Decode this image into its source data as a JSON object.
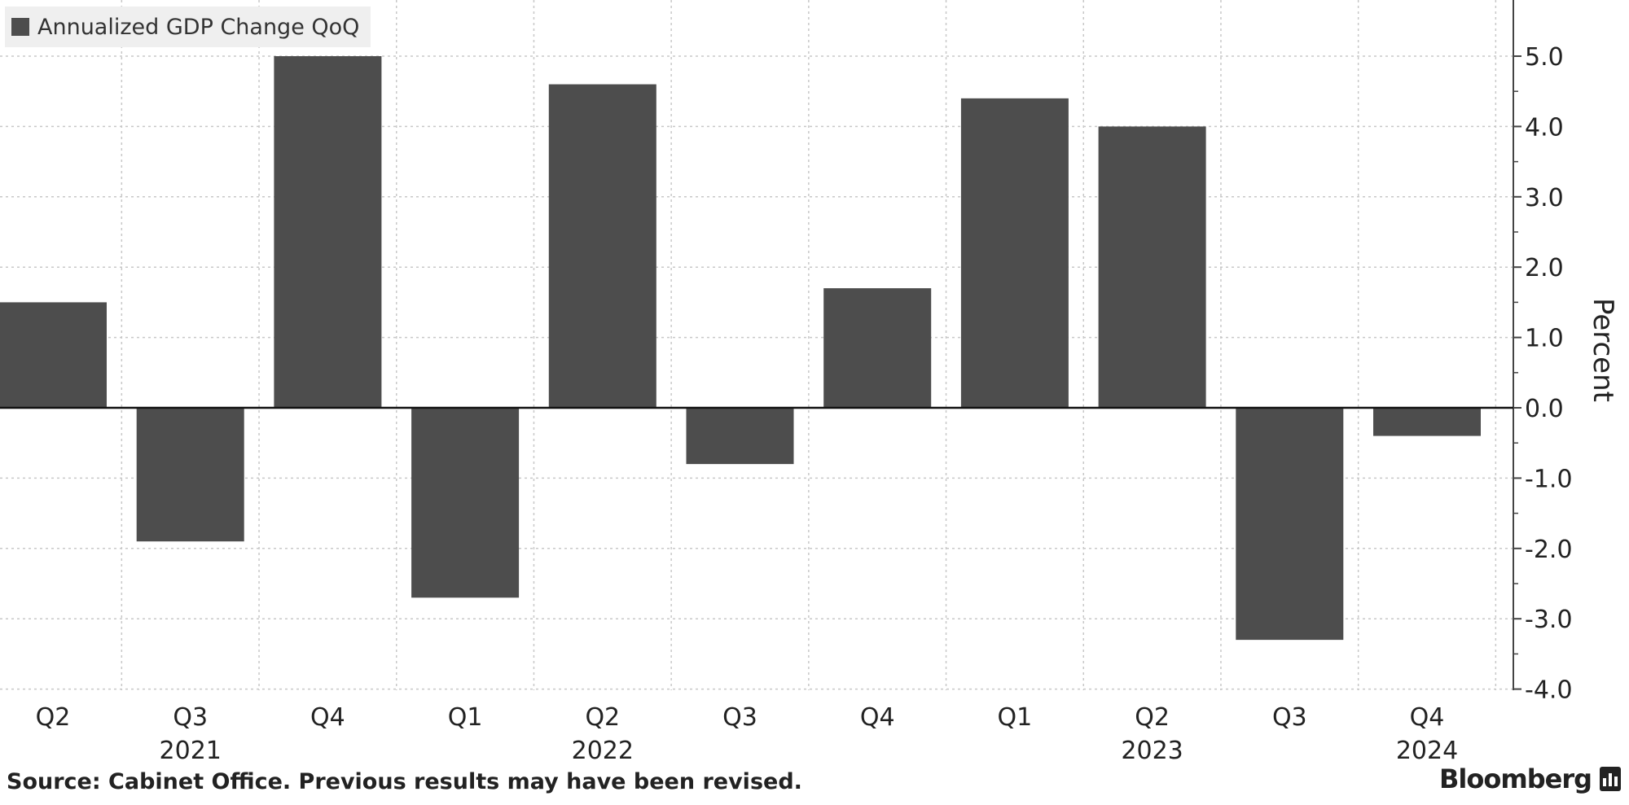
{
  "chart_data": {
    "type": "bar",
    "categories": [
      "Q2",
      "Q3",
      "Q4",
      "Q1",
      "Q2",
      "Q3",
      "Q4",
      "Q1",
      "Q2",
      "Q3",
      "Q4"
    ],
    "year_labels": [
      {
        "label": "2021",
        "category_index": 1
      },
      {
        "label": "2022",
        "category_index": 4
      },
      {
        "label": "2023",
        "category_index": 8
      },
      {
        "label": "2024",
        "category_index": 10
      }
    ],
    "series": [
      {
        "name": "Annualized GDP Change QoQ",
        "values": [
          1.5,
          -1.9,
          5.0,
          -2.7,
          4.6,
          -0.8,
          1.7,
          4.4,
          4.0,
          -3.3,
          -0.4
        ]
      }
    ],
    "ylabel": "Percent",
    "ylim": [
      -4.0,
      5.0
    ],
    "yticks": [
      "5.0",
      "4.0",
      "3.0",
      "2.0",
      "1.0",
      "0.0",
      "-1.0",
      "-2.0",
      "-3.0",
      "-4.0"
    ],
    "grid": true,
    "legend_position": "top-left",
    "bar_color": "#4d4d4d"
  },
  "footer": {
    "source": "Source: Cabinet Office. Previous results may have been revised.",
    "brand": "Bloomberg"
  }
}
